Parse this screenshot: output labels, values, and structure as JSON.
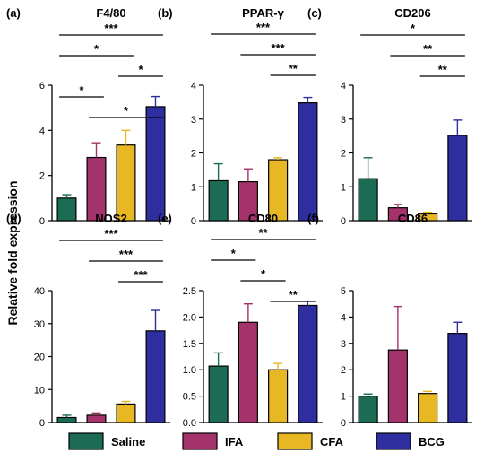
{
  "figure": {
    "ylabel": "Relative fold expression",
    "groups": [
      "Saline",
      "IFA",
      "CFA",
      "BCG"
    ],
    "colors": {
      "Saline": "#1c6b55",
      "IFA": "#a3336a",
      "CFA": "#e8b824",
      "BCG": "#2e2e9e"
    }
  },
  "chart_data": [
    {
      "type": "bar",
      "panel": "(a)",
      "title": "F4/80",
      "categories": [
        "Saline",
        "IFA",
        "CFA",
        "BCG"
      ],
      "values": [
        1.0,
        2.8,
        3.35,
        5.05
      ],
      "errors": [
        0.15,
        0.65,
        0.65,
        0.45
      ],
      "ylim": [
        0,
        6
      ],
      "yticks": [
        "0",
        "2",
        "4",
        "6"
      ],
      "significance": [
        {
          "from": 0,
          "to": 3,
          "label": "***"
        },
        {
          "from": 0,
          "to": 2,
          "label": "*"
        },
        {
          "from": 2,
          "to": 3,
          "label": "*"
        },
        {
          "from": 0,
          "to": 1,
          "label": "*"
        },
        {
          "from": 1,
          "to": 3,
          "label": "*"
        }
      ]
    },
    {
      "type": "bar",
      "panel": "(b)",
      "title": "PPAR-γ",
      "categories": [
        "Saline",
        "IFA",
        "CFA",
        "BCG"
      ],
      "values": [
        1.18,
        1.15,
        1.8,
        3.48
      ],
      "errors": [
        0.5,
        0.38,
        0.06,
        0.16
      ],
      "ylim": [
        0,
        4
      ],
      "yticks": [
        "0",
        "1",
        "2",
        "3",
        "4"
      ],
      "significance": [
        {
          "from": 0,
          "to": 3,
          "label": "***"
        },
        {
          "from": 1,
          "to": 3,
          "label": "***"
        },
        {
          "from": 2,
          "to": 3,
          "label": "**"
        }
      ]
    },
    {
      "type": "bar",
      "panel": "(c)",
      "title": "CD206",
      "categories": [
        "Saline",
        "IFA",
        "CFA",
        "BCG"
      ],
      "values": [
        1.24,
        0.38,
        0.2,
        2.52
      ],
      "errors": [
        0.62,
        0.1,
        0.05,
        0.45
      ],
      "ylim": [
        0,
        4
      ],
      "yticks": [
        "0",
        "1",
        "2",
        "3",
        "4"
      ],
      "significance": [
        {
          "from": 0,
          "to": 3,
          "label": "*"
        },
        {
          "from": 1,
          "to": 3,
          "label": "**"
        },
        {
          "from": 2,
          "to": 3,
          "label": "**"
        }
      ]
    },
    {
      "type": "bar",
      "panel": "(d)",
      "title": "NOS2",
      "categories": [
        "Saline",
        "IFA",
        "CFA",
        "BCG"
      ],
      "values": [
        1.5,
        2.2,
        5.6,
        27.8
      ],
      "errors": [
        0.7,
        0.7,
        0.8,
        6.2
      ],
      "ylim": [
        0,
        40
      ],
      "yticks": [
        "0",
        "10",
        "20",
        "30",
        "40"
      ],
      "significance": [
        {
          "from": 0,
          "to": 3,
          "label": "***"
        },
        {
          "from": 1,
          "to": 3,
          "label": "***"
        },
        {
          "from": 2,
          "to": 3,
          "label": "***"
        }
      ]
    },
    {
      "type": "bar",
      "panel": "(e)",
      "title": "CD80",
      "categories": [
        "Saline",
        "IFA",
        "CFA",
        "BCG"
      ],
      "values": [
        1.07,
        1.9,
        1.0,
        2.22
      ],
      "errors": [
        0.25,
        0.35,
        0.12,
        0.08
      ],
      "ylim": [
        0,
        2.5
      ],
      "yticks": [
        "0.0",
        "0.5",
        "1.0",
        "1.5",
        "2.0",
        "2.5"
      ],
      "significance": [
        {
          "from": 0,
          "to": 3,
          "label": "**"
        },
        {
          "from": 0,
          "to": 1,
          "label": "*"
        },
        {
          "from": 1,
          "to": 2,
          "label": "*"
        },
        {
          "from": 2,
          "to": 3,
          "label": "**"
        }
      ]
    },
    {
      "type": "bar",
      "panel": "(f)",
      "title": "CD86",
      "categories": [
        "Saline",
        "IFA",
        "CFA",
        "BCG"
      ],
      "values": [
        1.0,
        2.75,
        1.1,
        3.38
      ],
      "errors": [
        0.08,
        1.65,
        0.08,
        0.42
      ],
      "ylim": [
        0,
        5
      ],
      "yticks": [
        "0",
        "1",
        "2",
        "3",
        "4",
        "5"
      ],
      "significance": []
    }
  ]
}
